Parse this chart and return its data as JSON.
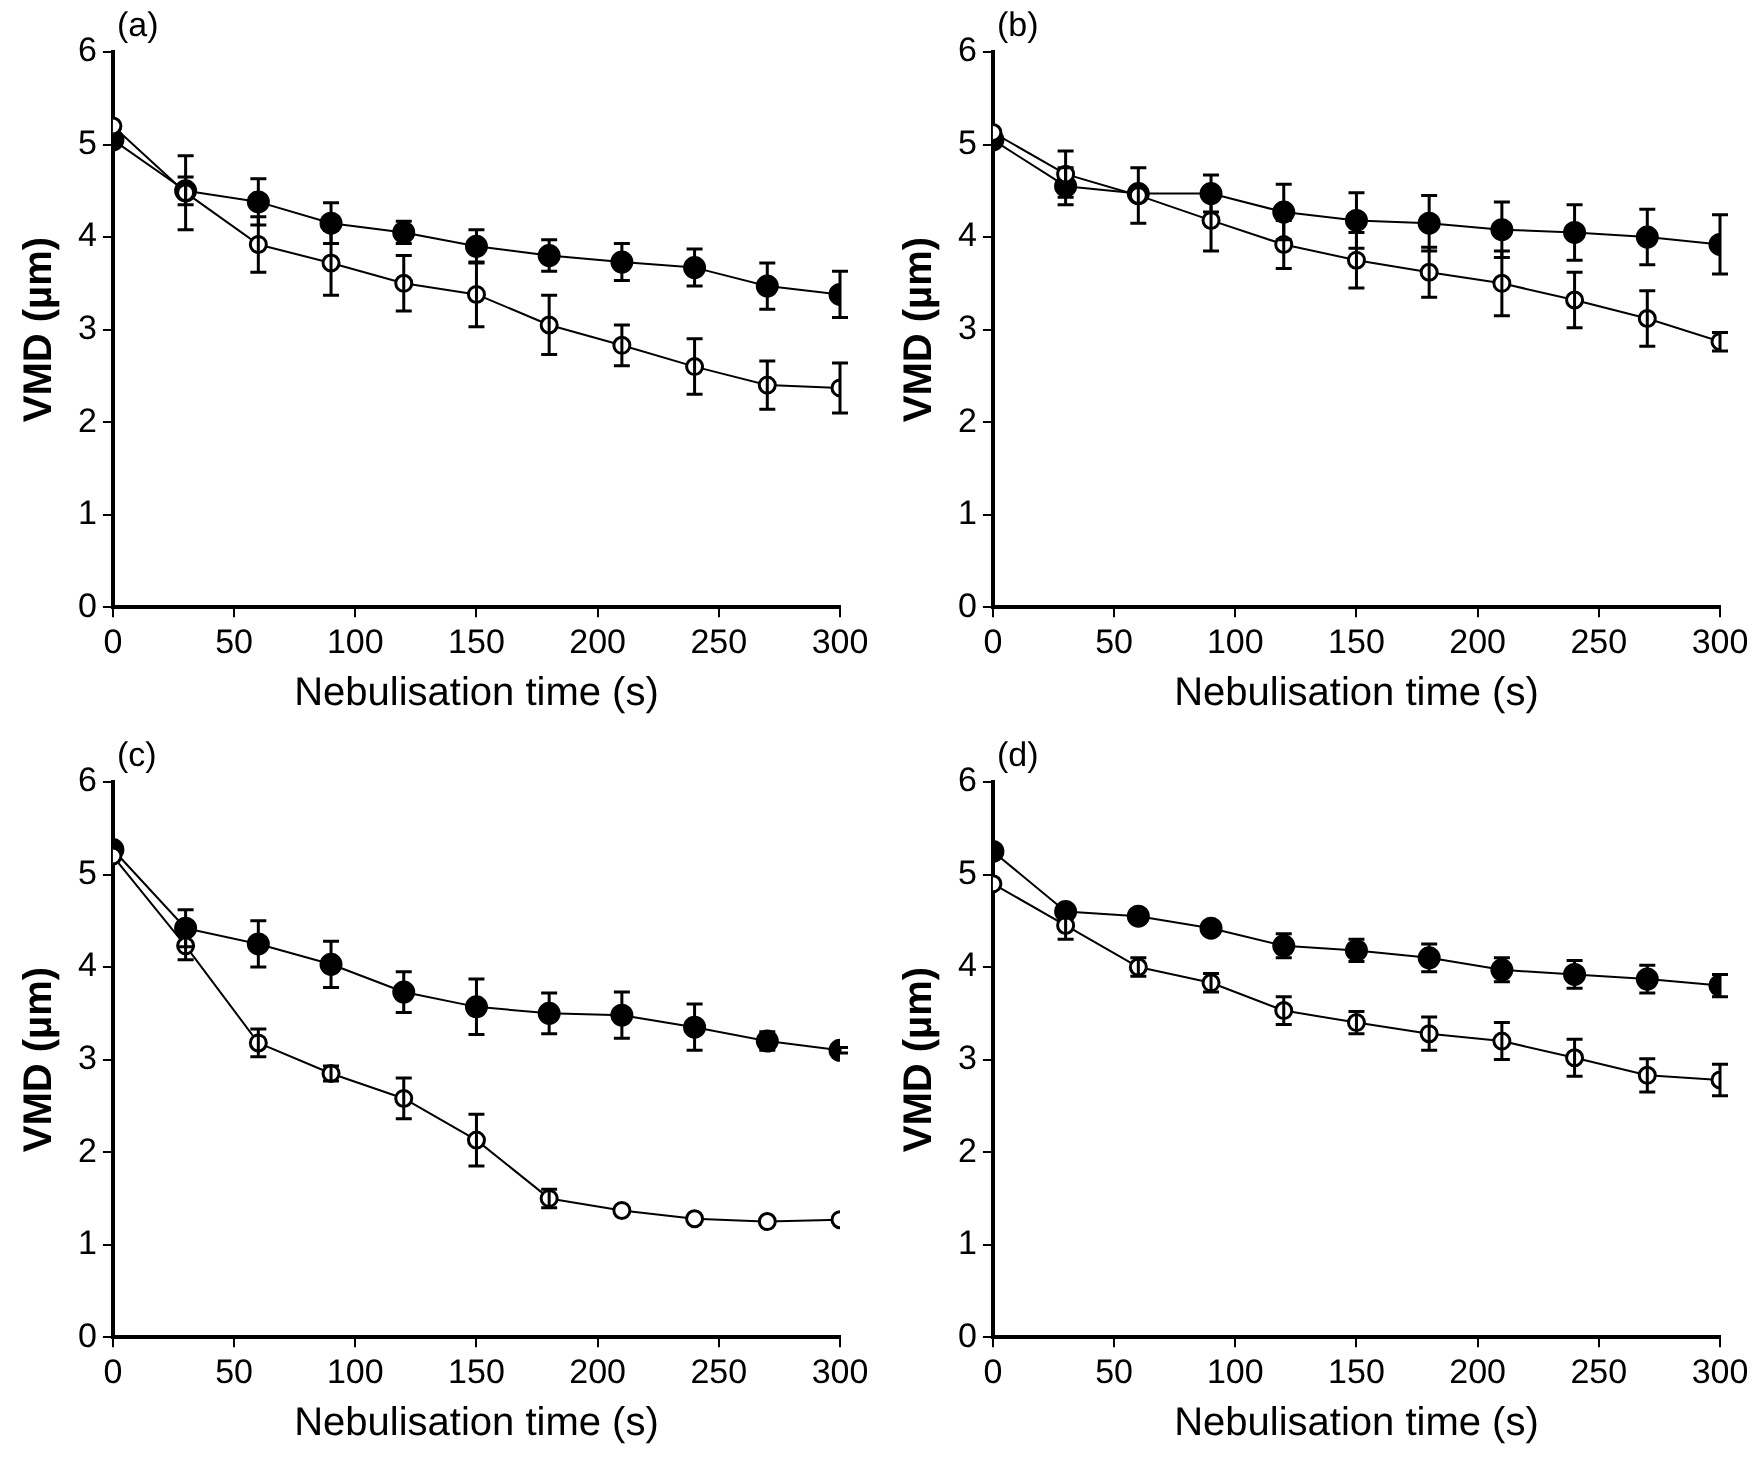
{
  "chart_data": [
    {
      "type": "line",
      "title": "(a)",
      "xlabel": "Nebulisation time (s)",
      "ylabel": "VMD (µm)",
      "x": [
        0,
        30,
        60,
        90,
        120,
        150,
        180,
        210,
        240,
        270,
        300
      ],
      "xlim": [
        0,
        300
      ],
      "xticks": [
        0,
        50,
        100,
        150,
        200,
        250,
        300
      ],
      "ylim": [
        0,
        6
      ],
      "yticks": [
        0,
        1,
        2,
        3,
        4,
        5,
        6
      ],
      "grid": false,
      "legend": false,
      "marker": "circle",
      "series": [
        {
          "color": "#000000",
          "values": [
            5.05,
            4.5,
            4.38,
            4.15,
            4.05,
            3.9,
            3.8,
            3.73,
            3.67,
            3.47,
            3.38
          ],
          "errors": [
            null,
            0.15,
            0.25,
            0.22,
            0.12,
            0.18,
            0.17,
            0.2,
            0.2,
            0.25,
            0.25
          ]
        },
        {
          "color": "#ffffff",
          "values": [
            5.2,
            4.48,
            3.92,
            3.72,
            3.5,
            3.38,
            3.05,
            2.83,
            2.6,
            2.4,
            2.37
          ],
          "errors": [
            null,
            0.4,
            0.3,
            0.35,
            0.3,
            0.35,
            0.32,
            0.22,
            0.3,
            0.26,
            0.27
          ]
        }
      ]
    },
    {
      "type": "line",
      "title": "(b)",
      "xlabel": "Nebulisation time (s)",
      "ylabel": "VMD (µm)",
      "x": [
        0,
        30,
        60,
        90,
        120,
        150,
        180,
        210,
        240,
        270,
        300
      ],
      "xlim": [
        0,
        300
      ],
      "xticks": [
        0,
        50,
        100,
        150,
        200,
        250,
        300
      ],
      "ylim": [
        0,
        6
      ],
      "yticks": [
        0,
        1,
        2,
        3,
        4,
        5,
        6
      ],
      "grid": false,
      "legend": false,
      "marker": "circle",
      "series": [
        {
          "color": "#000000",
          "values": [
            5.05,
            4.55,
            4.47,
            4.47,
            4.27,
            4.18,
            4.15,
            4.08,
            4.05,
            4.0,
            3.92
          ],
          "errors": [
            null,
            0.2,
            null,
            0.2,
            0.3,
            0.3,
            0.3,
            0.3,
            0.3,
            0.3,
            0.32
          ]
        },
        {
          "color": "#ffffff",
          "values": [
            5.13,
            4.68,
            4.45,
            4.18,
            3.92,
            3.75,
            3.62,
            3.5,
            3.32,
            3.12,
            2.87
          ],
          "errors": [
            null,
            0.25,
            0.3,
            0.33,
            0.26,
            0.3,
            0.27,
            0.35,
            0.3,
            0.3,
            0.1
          ]
        }
      ]
    },
    {
      "type": "line",
      "title": "(c)",
      "xlabel": "Nebulisation time (s)",
      "ylabel": "VMD (µm)",
      "x": [
        0,
        30,
        60,
        90,
        120,
        150,
        180,
        210,
        240,
        270,
        300
      ],
      "xlim": [
        0,
        300
      ],
      "xticks": [
        0,
        50,
        100,
        150,
        200,
        250,
        300
      ],
      "ylim": [
        0,
        6
      ],
      "yticks": [
        0,
        1,
        2,
        3,
        4,
        5,
        6
      ],
      "grid": false,
      "legend": false,
      "marker": "circle",
      "series": [
        {
          "color": "#000000",
          "values": [
            5.27,
            4.42,
            4.25,
            4.03,
            3.73,
            3.57,
            3.5,
            3.48,
            3.35,
            3.2,
            3.1
          ],
          "errors": [
            null,
            0.2,
            0.25,
            0.25,
            0.22,
            0.3,
            0.22,
            0.25,
            0.25,
            0.1,
            0.03
          ]
        },
        {
          "color": "#ffffff",
          "values": [
            5.2,
            4.23,
            3.18,
            2.85,
            2.58,
            2.13,
            1.5,
            1.37,
            1.28,
            1.25,
            1.27
          ],
          "errors": [
            null,
            0.15,
            0.15,
            0.08,
            0.22,
            0.28,
            0.1,
            null,
            null,
            null,
            null
          ]
        }
      ]
    },
    {
      "type": "line",
      "title": "(d)",
      "xlabel": "Nebulisation time (s)",
      "ylabel": "VMD (µm)",
      "x": [
        0,
        30,
        60,
        90,
        120,
        150,
        180,
        210,
        240,
        270,
        300
      ],
      "xlim": [
        0,
        300
      ],
      "xticks": [
        0,
        50,
        100,
        150,
        200,
        250,
        300
      ],
      "ylim": [
        0,
        6
      ],
      "yticks": [
        0,
        1,
        2,
        3,
        4,
        5,
        6
      ],
      "grid": false,
      "legend": false,
      "marker": "circle",
      "series": [
        {
          "color": "#000000",
          "values": [
            5.25,
            4.6,
            4.55,
            4.42,
            4.23,
            4.18,
            4.1,
            3.97,
            3.92,
            3.87,
            3.8
          ],
          "errors": [
            null,
            0.07,
            0.07,
            0.05,
            0.13,
            0.12,
            0.15,
            0.13,
            0.15,
            0.15,
            0.12
          ]
        },
        {
          "color": "#ffffff",
          "values": [
            4.9,
            4.45,
            4.0,
            3.83,
            3.53,
            3.4,
            3.28,
            3.2,
            3.02,
            2.83,
            2.78
          ],
          "errors": [
            null,
            0.15,
            0.1,
            0.1,
            0.15,
            0.12,
            0.18,
            0.2,
            0.2,
            0.18,
            0.17
          ]
        }
      ]
    }
  ]
}
